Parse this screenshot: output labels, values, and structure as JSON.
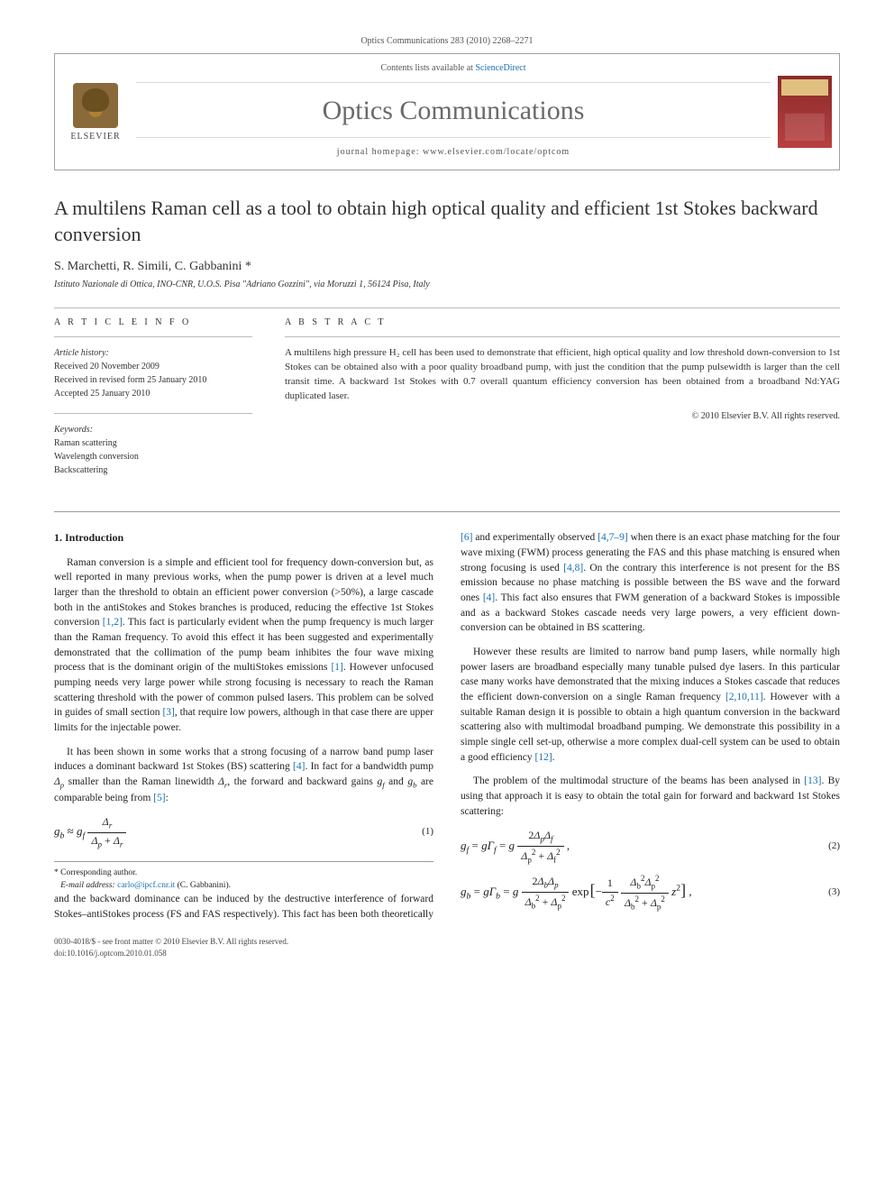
{
  "top_ref": "Optics Communications 283 (2010) 2268–2271",
  "header": {
    "contents_pre": "Contents lists available at ",
    "contents_link": "ScienceDirect",
    "journal_title": "Optics Communications",
    "homepage": "journal homepage: www.elsevier.com/locate/optcom",
    "publisher": "ELSEVIER",
    "cover_label": "OPTICS COMMUNICATIONS"
  },
  "article": {
    "title": "A multilens Raman cell as a tool to obtain high optical quality and efficient 1st Stokes backward conversion",
    "authors": "S. Marchetti, R. Simili, C. Gabbanini *",
    "affiliation": "Istituto Nazionale di Ottica, INO-CNR, U.O.S. Pisa \"Adriano Gozzini\", via Moruzzi 1, 56124 Pisa, Italy"
  },
  "info": {
    "label": "A R T I C L E   I N F O",
    "history_head": "Article history:",
    "received": "Received 20 November 2009",
    "revised": "Received in revised form 25 January 2010",
    "accepted": "Accepted 25 January 2010",
    "keywords_head": "Keywords:",
    "kw1": "Raman scattering",
    "kw2": "Wavelength conversion",
    "kw3": "Backscattering"
  },
  "abstract": {
    "label": "A B S T R A C T",
    "text": "A multilens high pressure H₂ cell has been used to demonstrate that efficient, high optical quality and low threshold down-conversion to 1st Stokes can be obtained also with a poor quality broadband pump, with just the condition that the pump pulsewidth is larger than the cell transit time. A backward 1st Stokes with 0.7 overall quantum efficiency conversion has been obtained from a broadband Nd:YAG duplicated laser.",
    "copyright": "© 2010 Elsevier B.V. All rights reserved."
  },
  "body": {
    "section_heading": "1. Introduction",
    "p1": "Raman conversion is a simple and efficient tool for frequency down-conversion but, as well reported in many previous works, when the pump power is driven at a level much larger than the threshold to obtain an efficient power conversion (>50%), a large cascade both in the antiStokes and Stokes branches is produced, reducing the effective 1st Stokes conversion [1,2]. This fact is particularly evident when the pump frequency is much larger than the Raman frequency. To avoid this effect it has been suggested and experimentally demonstrated that the collimation of the pump beam inhibites the four wave mixing process that is the dominant origin of the multiStokes emissions [1]. However unfocused pumping needs very large power while strong focusing is necessary to reach the Raman scattering threshold with the power of common pulsed lasers. This problem can be solved in guides of small section [3], that require low powers, although in that case there are upper limits for the injectable power.",
    "p2a": "It has been shown in some works that a strong focusing of a narrow band pump laser induces a dominant backward 1st Stokes (BS) scattering [4]. In fact for a bandwidth pump ",
    "p2b": " smaller than the Raman linewidth ",
    "p2c": ", the forward and backward gains ",
    "p2d": " and ",
    "p2e": " are comparable being from [5]:",
    "p3": "and the backward dominance can be induced by the destructive interference of forward Stokes–antiStokes process (FS and FAS respectively). This fact has been both theoretically [6] and experimentally observed [4,7–9] when there is an exact phase matching for the four wave mixing (FWM) process generating the FAS and this phase matching is ensured when strong focusing is used [4,8]. On the contrary this interference is not present for the BS emission because no phase matching is possible between the BS wave and the forward ones [4]. This fact also ensures that FWM generation of a backward Stokes is impossible and as a backward Stokes cascade needs very large powers, a very efficient down-conversion can be obtained in BS scattering.",
    "p4": "However these results are limited to narrow band pump lasers, while normally high power lasers are broadband especially many tunable pulsed dye lasers. In this particular case many works have demonstrated that the mixing induces a Stokes cascade that reduces the efficient down-conversion on a single Raman frequency [2,10,11]. However with a suitable Raman design it is possible to obtain a high quantum conversion in the backward scattering also with multimodal broadband pumping. We demonstrate this possibility in a simple single cell set-up, otherwise a more complex dual-cell system can be used to obtain a good efficiency [12].",
    "p5": "The problem of the multimodal structure of the beams has been analysed in [13]. By using that approach it is easy to obtain the total gain for forward and backward 1st Stokes scattering:"
  },
  "equations": {
    "eq1_num": "(1)",
    "eq2_num": "(2)",
    "eq3_num": "(3)"
  },
  "footnote": {
    "corr": "* Corresponding author.",
    "email_label": "E-mail address: ",
    "email": "carlo@ipcf.cnr.it",
    "email_name": " (C. Gabbanini)."
  },
  "bottom": {
    "line1": "0030-4018/$ - see front matter © 2010 Elsevier B.V. All rights reserved.",
    "line2": "doi:10.1016/j.optcom.2010.01.058"
  },
  "colors": {
    "link": "#1a6fb0",
    "rule": "#a0a0a0",
    "text": "#333333",
    "cover_bg": "#8a2a2a"
  }
}
